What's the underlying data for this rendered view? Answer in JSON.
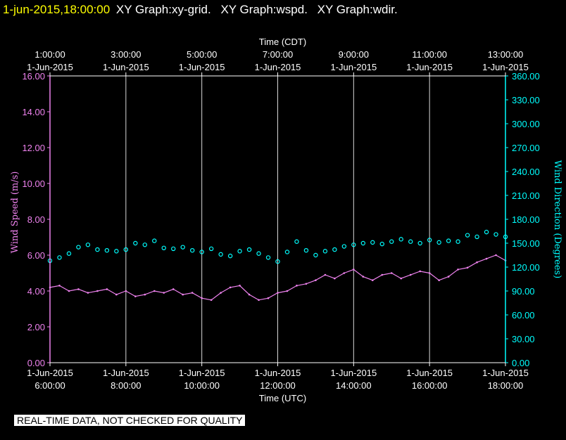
{
  "header": {
    "timestamp": "1-jun-2015,18:00:00",
    "graphs": [
      "XY Graph:xy-grid.",
      "XY Graph:wspd.",
      "XY Graph:wdir."
    ]
  },
  "disclaimer": "REAL-TIME DATA, NOT CHECKED FOR QUALITY",
  "colors": {
    "speed": "#ee82ee",
    "direction": "#00ffff",
    "axis_left": "#ee82ee",
    "axis_right": "#00ffff",
    "grid": "#ffffff"
  },
  "chart_data": {
    "type": "scatter",
    "top_axis": {
      "title": "Time (CDT)",
      "ticks": [
        {
          "x": 0,
          "time": "1:00:00",
          "date": "1-Jun-2015"
        },
        {
          "x": 2,
          "time": "3:00:00",
          "date": "1-Jun-2015"
        },
        {
          "x": 4,
          "time": "5:00:00",
          "date": "1-Jun-2015"
        },
        {
          "x": 6,
          "time": "7:00:00",
          "date": "1-Jun-2015"
        },
        {
          "x": 8,
          "time": "9:00:00",
          "date": "1-Jun-2015"
        },
        {
          "x": 10,
          "time": "11:00:00",
          "date": "1-Jun-2015"
        },
        {
          "x": 12,
          "time": "13:00:00",
          "date": "1-Jun-2015"
        }
      ]
    },
    "bottom_axis": {
      "title": "Time (UTC)",
      "ticks": [
        {
          "x": 0,
          "date": "1-Jun-2015",
          "time": "6:00:00"
        },
        {
          "x": 2,
          "date": "1-Jun-2015",
          "time": "8:00:00"
        },
        {
          "x": 4,
          "date": "1-Jun-2015",
          "time": "10:00:00"
        },
        {
          "x": 6,
          "date": "1-Jun-2015",
          "time": "12:00:00"
        },
        {
          "x": 8,
          "date": "1-Jun-2015",
          "time": "14:00:00"
        },
        {
          "x": 10,
          "date": "1-Jun-2015",
          "time": "16:00:00"
        },
        {
          "x": 12,
          "date": "1-Jun-2015",
          "time": "18:00:00"
        }
      ]
    },
    "xlim": [
      0,
      12
    ],
    "left_axis": {
      "label": "Wind Speed (m/s)",
      "ylim": [
        0,
        16
      ],
      "ticks": [
        "0.00",
        "2.00",
        "4.00",
        "6.00",
        "8.00",
        "10.00",
        "12.00",
        "14.00",
        "16.00"
      ]
    },
    "right_axis": {
      "label": "Wind Direction (Degrees)",
      "ylim": [
        0,
        360
      ],
      "ticks": [
        "0.00",
        "30.00",
        "60.00",
        "90.00",
        "120.00",
        "150.00",
        "180.00",
        "210.00",
        "240.00",
        "270.00",
        "300.00",
        "330.00",
        "360.00"
      ]
    },
    "grid": "vertical",
    "series": [
      {
        "axis": "left",
        "style": "line",
        "x": [
          0,
          0.25,
          0.5,
          0.75,
          1,
          1.25,
          1.5,
          1.75,
          2,
          2.25,
          2.5,
          2.75,
          3,
          3.25,
          3.5,
          3.75,
          4,
          4.25,
          4.5,
          4.75,
          5,
          5.25,
          5.5,
          5.75,
          6,
          6.25,
          6.5,
          6.75,
          7,
          7.25,
          7.5,
          7.75,
          8,
          8.25,
          8.5,
          8.75,
          9,
          9.25,
          9.5,
          9.75,
          10,
          10.25,
          10.5,
          10.75,
          11,
          11.25,
          11.5,
          11.75,
          12
        ],
        "values": [
          4.2,
          4.3,
          4.0,
          4.1,
          3.9,
          4.0,
          4.1,
          3.8,
          4.0,
          3.7,
          3.8,
          4.0,
          3.9,
          4.1,
          3.8,
          3.9,
          3.6,
          3.5,
          3.9,
          4.2,
          4.3,
          3.8,
          3.5,
          3.6,
          3.9,
          4.0,
          4.3,
          4.4,
          4.6,
          4.9,
          4.7,
          5.0,
          5.2,
          4.8,
          4.6,
          4.9,
          5.0,
          4.7,
          4.9,
          5.1,
          5.0,
          4.6,
          4.8,
          5.2,
          5.3,
          5.6,
          5.8,
          6.0,
          5.7
        ]
      },
      {
        "axis": "right",
        "style": "points",
        "x": [
          0,
          0.25,
          0.5,
          0.75,
          1,
          1.25,
          1.5,
          1.75,
          2,
          2.25,
          2.5,
          2.75,
          3,
          3.25,
          3.5,
          3.75,
          4,
          4.25,
          4.5,
          4.75,
          5,
          5.25,
          5.5,
          5.75,
          6,
          6.25,
          6.5,
          6.75,
          7,
          7.25,
          7.5,
          7.75,
          8,
          8.25,
          8.5,
          8.75,
          9,
          9.25,
          9.5,
          9.75,
          10,
          10.25,
          10.5,
          10.75,
          11,
          11.25,
          11.5,
          11.75,
          12
        ],
        "values": [
          128,
          132,
          137,
          145,
          148,
          142,
          141,
          140,
          142,
          150,
          148,
          153,
          144,
          143,
          145,
          141,
          139,
          143,
          136,
          134,
          140,
          142,
          137,
          132,
          127,
          139,
          152,
          141,
          135,
          140,
          142,
          146,
          148,
          150,
          151,
          149,
          152,
          155,
          152,
          150,
          154,
          151,
          153,
          152,
          160,
          158,
          164,
          161,
          158
        ]
      }
    ]
  }
}
